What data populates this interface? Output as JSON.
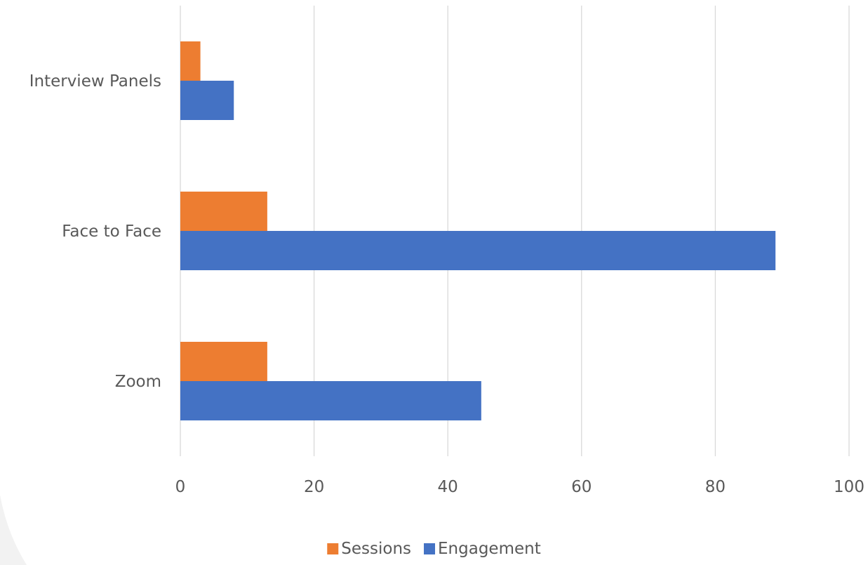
{
  "chart_data": {
    "type": "bar",
    "orientation": "horizontal",
    "categories": [
      "Interview Panels",
      "Face to Face",
      "Zoom"
    ],
    "series": [
      {
        "name": "Sessions",
        "color": "#ED7D31",
        "values": [
          3,
          13,
          13
        ]
      },
      {
        "name": "Engagement",
        "color": "#4472C4",
        "values": [
          8,
          89,
          45
        ]
      }
    ],
    "x_ticks": [
      "0",
      "20",
      "40",
      "60",
      "80",
      "100"
    ],
    "xlim": [
      0,
      100
    ],
    "grid": true,
    "legend_position": "bottom"
  }
}
